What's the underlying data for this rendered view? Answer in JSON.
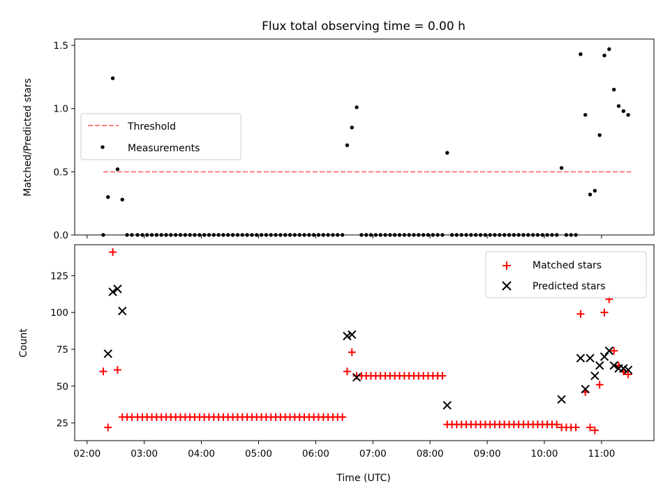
{
  "chart_data": [
    {
      "type": "scatter",
      "title": "Flux total observing time = 0.00 h",
      "xlabel": "",
      "ylabel": "Matched/Predicted stars",
      "ylim": [
        0,
        1.55
      ],
      "yticks": [
        "0.0",
        "0.5",
        "1.0",
        "1.5"
      ],
      "x_time_range": [
        "02:00",
        "11:55"
      ],
      "legend": {
        "placement": "center-left",
        "entries": [
          "Threshold",
          "Measurements"
        ]
      },
      "series": [
        {
          "name": "Threshold",
          "kind": "dashed-line",
          "color": "#ff7f7f",
          "x": [
            "02:17",
            "11:31"
          ],
          "y": [
            0.5,
            0.5
          ]
        },
        {
          "name": "Measurements",
          "kind": "points",
          "color": "#000000",
          "x": [
            "02:17",
            "02:22",
            "02:27",
            "02:32",
            "02:37",
            "02:42",
            "02:47",
            "02:53",
            "02:58",
            "03:03",
            "03:08",
            "03:13",
            "03:18",
            "03:23",
            "03:28",
            "03:33",
            "03:38",
            "03:43",
            "03:48",
            "03:53",
            "03:58",
            "04:03",
            "04:08",
            "04:13",
            "04:18",
            "04:23",
            "04:28",
            "04:33",
            "04:38",
            "04:43",
            "04:48",
            "04:53",
            "04:58",
            "05:03",
            "05:08",
            "05:13",
            "05:18",
            "05:23",
            "05:28",
            "05:33",
            "05:38",
            "05:43",
            "05:48",
            "05:53",
            "05:58",
            "06:03",
            "06:08",
            "06:13",
            "06:18",
            "06:23",
            "06:28",
            "06:33",
            "06:38",
            "06:43",
            "06:48",
            "06:53",
            "06:58",
            "07:03",
            "07:08",
            "07:13",
            "07:18",
            "07:23",
            "07:28",
            "07:33",
            "07:38",
            "07:43",
            "07:48",
            "07:53",
            "07:58",
            "08:03",
            "08:08",
            "08:13",
            "08:18",
            "08:23",
            "08:28",
            "08:33",
            "08:38",
            "08:43",
            "08:48",
            "08:53",
            "08:58",
            "09:03",
            "09:08",
            "09:13",
            "09:18",
            "09:23",
            "09:28",
            "09:33",
            "09:38",
            "09:43",
            "09:48",
            "09:53",
            "09:58",
            "10:03",
            "10:08",
            "10:13",
            "10:18",
            "10:23",
            "10:28",
            "10:33",
            "10:38",
            "10:43",
            "10:48",
            "10:53",
            "10:58",
            "11:03",
            "11:08",
            "11:13",
            "11:18",
            "11:23",
            "11:28"
          ],
          "y": [
            0.0,
            0.3,
            1.24,
            0.52,
            0.28,
            0.0,
            0.0,
            0.0,
            0.0,
            0.0,
            0.0,
            0.0,
            0.0,
            0.0,
            0.0,
            0.0,
            0.0,
            0.0,
            0.0,
            0.0,
            0.0,
            0.0,
            0.0,
            0.0,
            0.0,
            0.0,
            0.0,
            0.0,
            0.0,
            0.0,
            0.0,
            0.0,
            0.0,
            0.0,
            0.0,
            0.0,
            0.0,
            0.0,
            0.0,
            0.0,
            0.0,
            0.0,
            0.0,
            0.0,
            0.0,
            0.0,
            0.0,
            0.0,
            0.0,
            0.0,
            0.0,
            0.71,
            0.85,
            1.01,
            0.0,
            0.0,
            0.0,
            0.0,
            0.0,
            0.0,
            0.0,
            0.0,
            0.0,
            0.0,
            0.0,
            0.0,
            0.0,
            0.0,
            0.0,
            0.0,
            0.0,
            0.0,
            0.65,
            0.0,
            0.0,
            0.0,
            0.0,
            0.0,
            0.0,
            0.0,
            0.0,
            0.0,
            0.0,
            0.0,
            0.0,
            0.0,
            0.0,
            0.0,
            0.0,
            0.0,
            0.0,
            0.0,
            0.0,
            0.0,
            0.0,
            0.0,
            0.53,
            0.0,
            0.0,
            0.0,
            1.43,
            0.95,
            0.32,
            0.35,
            0.79,
            1.42,
            1.47,
            1.15,
            1.02,
            0.98,
            0.95
          ]
        }
      ]
    },
    {
      "type": "scatter",
      "title": "",
      "xlabel": "Time (UTC)",
      "ylabel": "Count",
      "ylim": [
        13,
        146
      ],
      "yticks": [
        "25",
        "50",
        "75",
        "100",
        "125"
      ],
      "x_time_range": [
        "02:00",
        "11:55"
      ],
      "xticks": [
        "02:00",
        "03:00",
        "04:00",
        "05:00",
        "06:00",
        "07:00",
        "08:00",
        "09:00",
        "10:00",
        "11:00"
      ],
      "legend": {
        "placement": "upper right",
        "entries": [
          "Matched stars",
          "Predicted stars"
        ]
      },
      "series": [
        {
          "name": "Matched stars",
          "kind": "plus",
          "color": "#ff0000",
          "x": [
            "02:17",
            "02:22",
            "02:27",
            "02:32",
            "02:37",
            "02:42",
            "02:47",
            "02:53",
            "02:58",
            "03:03",
            "03:08",
            "03:13",
            "03:18",
            "03:23",
            "03:28",
            "03:33",
            "03:38",
            "03:43",
            "03:48",
            "03:53",
            "03:58",
            "04:03",
            "04:08",
            "04:13",
            "04:18",
            "04:23",
            "04:28",
            "04:33",
            "04:38",
            "04:43",
            "04:48",
            "04:53",
            "04:58",
            "05:03",
            "05:08",
            "05:13",
            "05:18",
            "05:23",
            "05:28",
            "05:33",
            "05:38",
            "05:43",
            "05:48",
            "05:53",
            "05:58",
            "06:03",
            "06:08",
            "06:13",
            "06:18",
            "06:23",
            "06:28",
            "06:33",
            "06:38",
            "06:43",
            "06:48",
            "06:53",
            "06:58",
            "07:03",
            "07:08",
            "07:13",
            "07:18",
            "07:23",
            "07:28",
            "07:33",
            "07:38",
            "07:43",
            "07:48",
            "07:53",
            "07:58",
            "08:03",
            "08:08",
            "08:13",
            "08:18",
            "08:23",
            "08:28",
            "08:33",
            "08:38",
            "08:43",
            "08:48",
            "08:53",
            "08:58",
            "09:03",
            "09:08",
            "09:13",
            "09:18",
            "09:23",
            "09:28",
            "09:33",
            "09:38",
            "09:43",
            "09:48",
            "09:53",
            "09:58",
            "10:03",
            "10:08",
            "10:13",
            "10:18",
            "10:23",
            "10:28",
            "10:33",
            "10:38",
            "10:43",
            "10:48",
            "10:53",
            "10:58",
            "11:03",
            "11:08",
            "11:13",
            "11:18",
            "11:23",
            "11:28"
          ],
          "y": [
            60,
            22,
            141,
            61,
            29,
            29,
            29,
            29,
            29,
            29,
            29,
            29,
            29,
            29,
            29,
            29,
            29,
            29,
            29,
            29,
            29,
            29,
            29,
            29,
            29,
            29,
            29,
            29,
            29,
            29,
            29,
            29,
            29,
            29,
            29,
            29,
            29,
            29,
            29,
            29,
            29,
            29,
            29,
            29,
            29,
            29,
            29,
            29,
            29,
            29,
            29,
            60,
            73,
            57,
            57,
            57,
            57,
            57,
            57,
            57,
            57,
            57,
            57,
            57,
            57,
            57,
            57,
            57,
            57,
            57,
            57,
            57,
            24,
            24,
            24,
            24,
            24,
            24,
            24,
            24,
            24,
            24,
            24,
            24,
            24,
            24,
            24,
            24,
            24,
            24,
            24,
            24,
            24,
            24,
            24,
            24,
            22,
            22,
            22,
            22,
            99,
            46,
            22,
            20,
            51,
            100,
            109,
            74,
            64,
            60,
            58
          ]
        },
        {
          "name": "Predicted stars",
          "kind": "x",
          "color": "#000000",
          "x": [
            "02:22",
            "02:27",
            "02:32",
            "02:37",
            "06:33",
            "06:38",
            "06:43",
            "08:18",
            "10:18",
            "10:38",
            "10:43",
            "10:48",
            "10:53",
            "10:58",
            "11:03",
            "11:08",
            "11:13",
            "11:18",
            "11:23",
            "11:28"
          ],
          "y": [
            72,
            114,
            116,
            101,
            84,
            85,
            56,
            37,
            41,
            69,
            48,
            69,
            57,
            64,
            70,
            74,
            64,
            62,
            62,
            61
          ]
        }
      ]
    }
  ]
}
